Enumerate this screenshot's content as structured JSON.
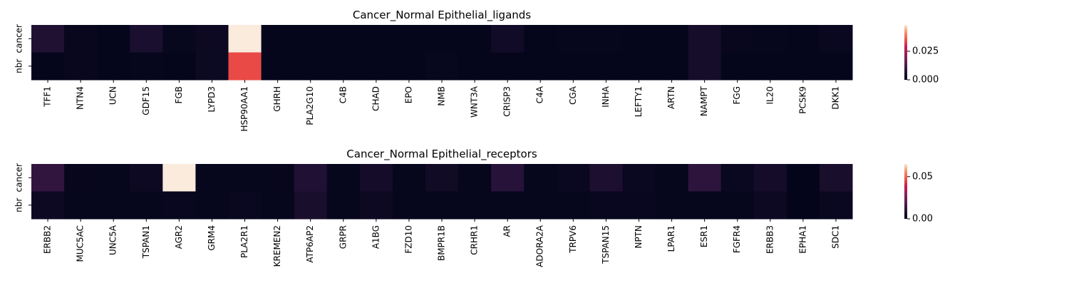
{
  "chart_data": [
    {
      "type": "heatmap",
      "title": "Cancer_Normal Epithelial_ligands",
      "rows": [
        "cancer",
        "nbr"
      ],
      "columns": [
        "TFF1",
        "NTN4",
        "UCN",
        "GDF15",
        "FGB",
        "LYPD3",
        "HSP90AA1",
        "GHRH",
        "PLA2G10",
        "C4B",
        "CHAD",
        "EPO",
        "NMB",
        "WNT3A",
        "CRISP3",
        "C4A",
        "CGA",
        "INHA",
        "LEFTY1",
        "ARTN",
        "NAMPT",
        "FGG",
        "IL20",
        "PCSK9",
        "DKK1"
      ],
      "values": [
        [
          0.006,
          0.001,
          0.0005,
          0.005,
          0.0008,
          0.002,
          0.048,
          0.0005,
          0.0005,
          0.0005,
          0.0005,
          0.0005,
          0.0005,
          0.0005,
          0.003,
          0.0005,
          0.0007,
          0.0006,
          0.0005,
          0.0005,
          0.004,
          0.001,
          0.0007,
          0.0005,
          0.0015
        ],
        [
          0.0005,
          0.001,
          0.0005,
          0.0007,
          0.0005,
          0.0018,
          0.034,
          0.0005,
          0.0005,
          0.0005,
          0.0005,
          0.0005,
          0.0008,
          0.0005,
          0.0005,
          0.0005,
          0.0005,
          0.0005,
          0.0005,
          0.0005,
          0.004,
          0.0005,
          0.0005,
          0.0005,
          0.0005
        ]
      ],
      "colorbar": {
        "vmin": 0,
        "vmax": 0.048,
        "ticks": [
          0.0,
          0.025
        ],
        "tick_labels": [
          "0.000",
          "0.025"
        ]
      }
    },
    {
      "type": "heatmap",
      "title": "Cancer_Normal Epithelial_receptors",
      "rows": [
        "cancer",
        "nbr"
      ],
      "columns": [
        "ERBB2",
        "MUC5AC",
        "UNC5A",
        "TSPAN1",
        "AGR2",
        "GRM4",
        "PLA2R1",
        "KREMEN2",
        "ATP6AP2",
        "GRPR",
        "A1BG",
        "FZD10",
        "BMPR1B",
        "CRHR1",
        "AR",
        "ADORA2A",
        "TRPV6",
        "TSPAN15",
        "NPTN",
        "LPAR1",
        "ESR1",
        "FGFR4",
        "ERBB3",
        "EPHA1",
        "SDC1"
      ],
      "values": [
        [
          0.012,
          0.001,
          0.0008,
          0.003,
          0.065,
          0.0008,
          0.0008,
          0.001,
          0.008,
          0.0008,
          0.005,
          0.0008,
          0.004,
          0.0008,
          0.01,
          0.0008,
          0.002,
          0.007,
          0.002,
          0.0008,
          0.011,
          0.002,
          0.005,
          0.0003,
          0.006
        ],
        [
          0.003,
          0.0008,
          0.0008,
          0.0008,
          0.0015,
          0.0008,
          0.002,
          0.0008,
          0.006,
          0.0008,
          0.003,
          0.0008,
          0.0008,
          0.0008,
          0.0008,
          0.0008,
          0.0008,
          0.0015,
          0.0015,
          0.0008,
          0.0008,
          0.0008,
          0.003,
          0.0003,
          0.002
        ]
      ],
      "colorbar": {
        "vmin": 0,
        "vmax": 0.065,
        "ticks": [
          0.0,
          0.05
        ],
        "tick_labels": [
          "0.00",
          "0.05"
        ]
      }
    }
  ]
}
